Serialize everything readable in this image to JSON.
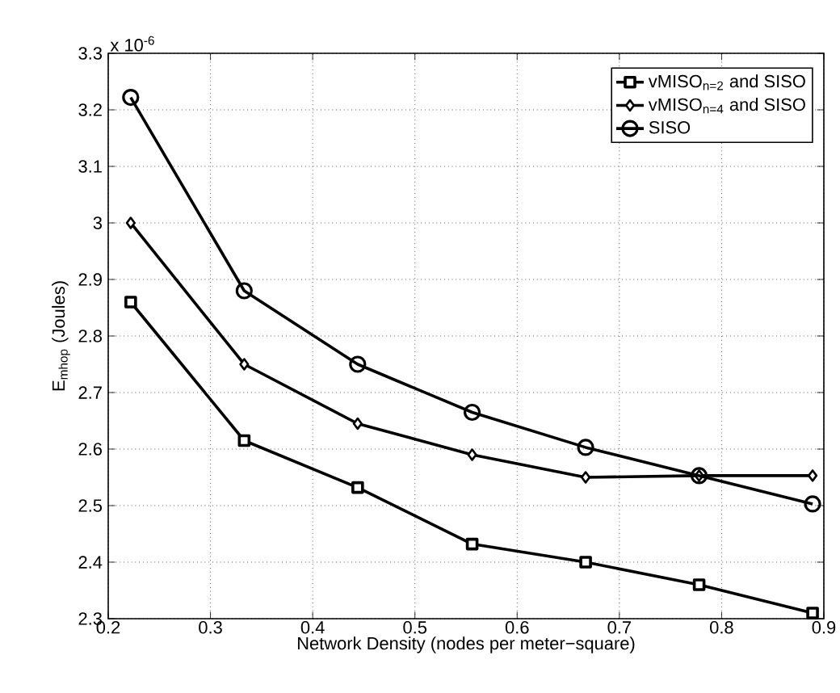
{
  "chart_data": {
    "type": "line",
    "xlabel": "Network Density (nodes per meter−square)",
    "ylabel": "E$_{mhop}$ (Joules)",
    "annotations": [
      "x 10$^{-6}$"
    ],
    "x": [
      0.222,
      0.333,
      0.444,
      0.556,
      0.667,
      0.778,
      0.889
    ],
    "series": [
      {
        "name": "vMISO$_{n=2}$ and SISO",
        "color": "#000000",
        "marker": "square",
        "values": [
          2.86,
          2.615,
          2.532,
          2.432,
          2.4,
          2.36,
          2.31
        ]
      },
      {
        "name": "vMISO$_{n=4}$ and SISO",
        "color": "#000000",
        "marker": "diamond",
        "values": [
          3.0,
          2.75,
          2.645,
          2.59,
          2.55,
          2.553,
          2.553
        ]
      },
      {
        "name": "SISO",
        "color": "#000000",
        "marker": "circle",
        "values": [
          3.222,
          2.88,
          2.75,
          2.665,
          2.603,
          2.553,
          2.503
        ]
      }
    ],
    "xlim": [
      0.2,
      0.9
    ],
    "ylim": [
      2.3,
      3.3
    ],
    "xticks": [
      0.2,
      0.3,
      0.4,
      0.5,
      0.6,
      0.7,
      0.8,
      0.9
    ],
    "yticks": [
      2.3,
      2.4,
      2.5,
      2.6,
      2.7,
      2.8,
      2.9,
      3,
      3.1,
      3.2,
      3.3
    ],
    "grid": true,
    "legend": "top right",
    "line_style": "solid"
  }
}
